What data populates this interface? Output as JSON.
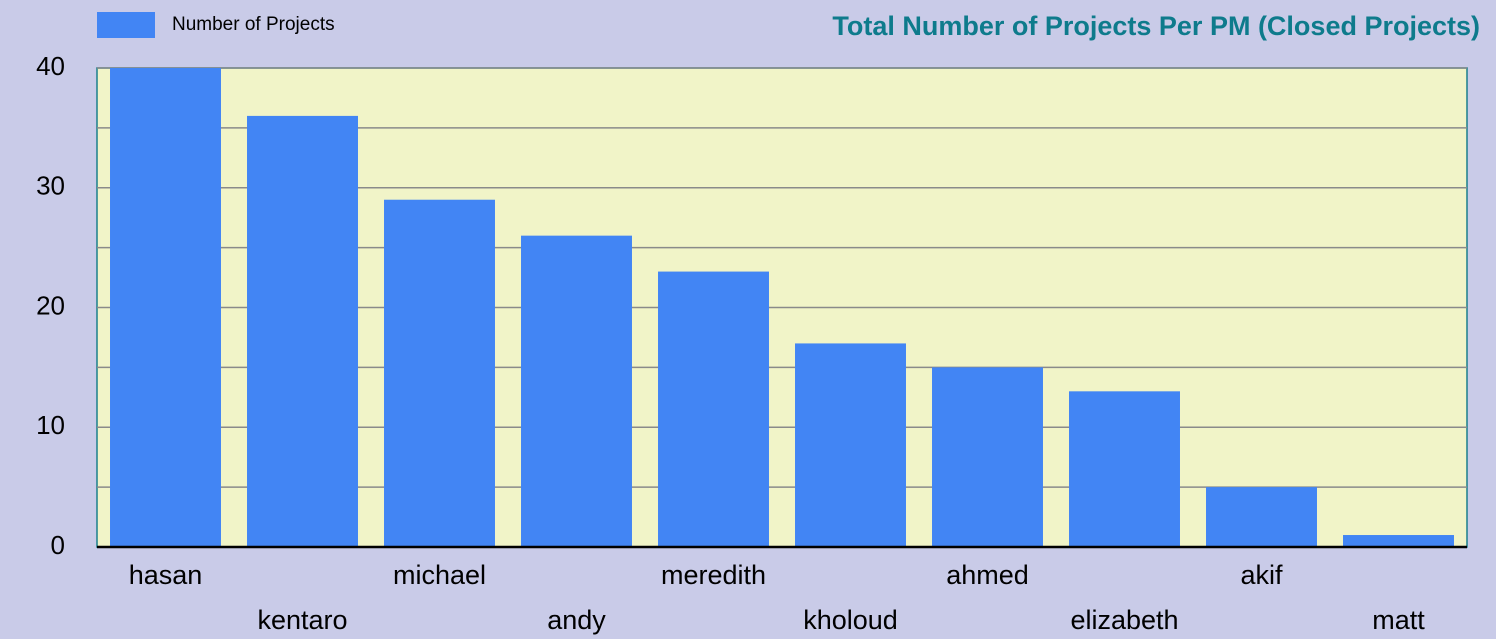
{
  "chart_data": {
    "type": "bar",
    "title": "Total Number of Projects Per PM (Closed Projects)",
    "series": [
      {
        "name": "Number of Projects",
        "color": "#4285f4",
        "values": [
          40,
          36,
          29,
          26,
          23,
          17,
          15,
          13,
          5,
          1
        ]
      }
    ],
    "categories": [
      "hasan",
      "kentaro",
      "michael",
      "andy",
      "meredith",
      "kholoud",
      "ahmed",
      "elizabeth",
      "akif",
      "matt"
    ],
    "ylim": [
      0,
      40
    ],
    "yticks": [
      0,
      10,
      20,
      30,
      40
    ],
    "minor_yticks": [
      5,
      15,
      25,
      35
    ],
    "grid": true,
    "legend": "top-left"
  }
}
